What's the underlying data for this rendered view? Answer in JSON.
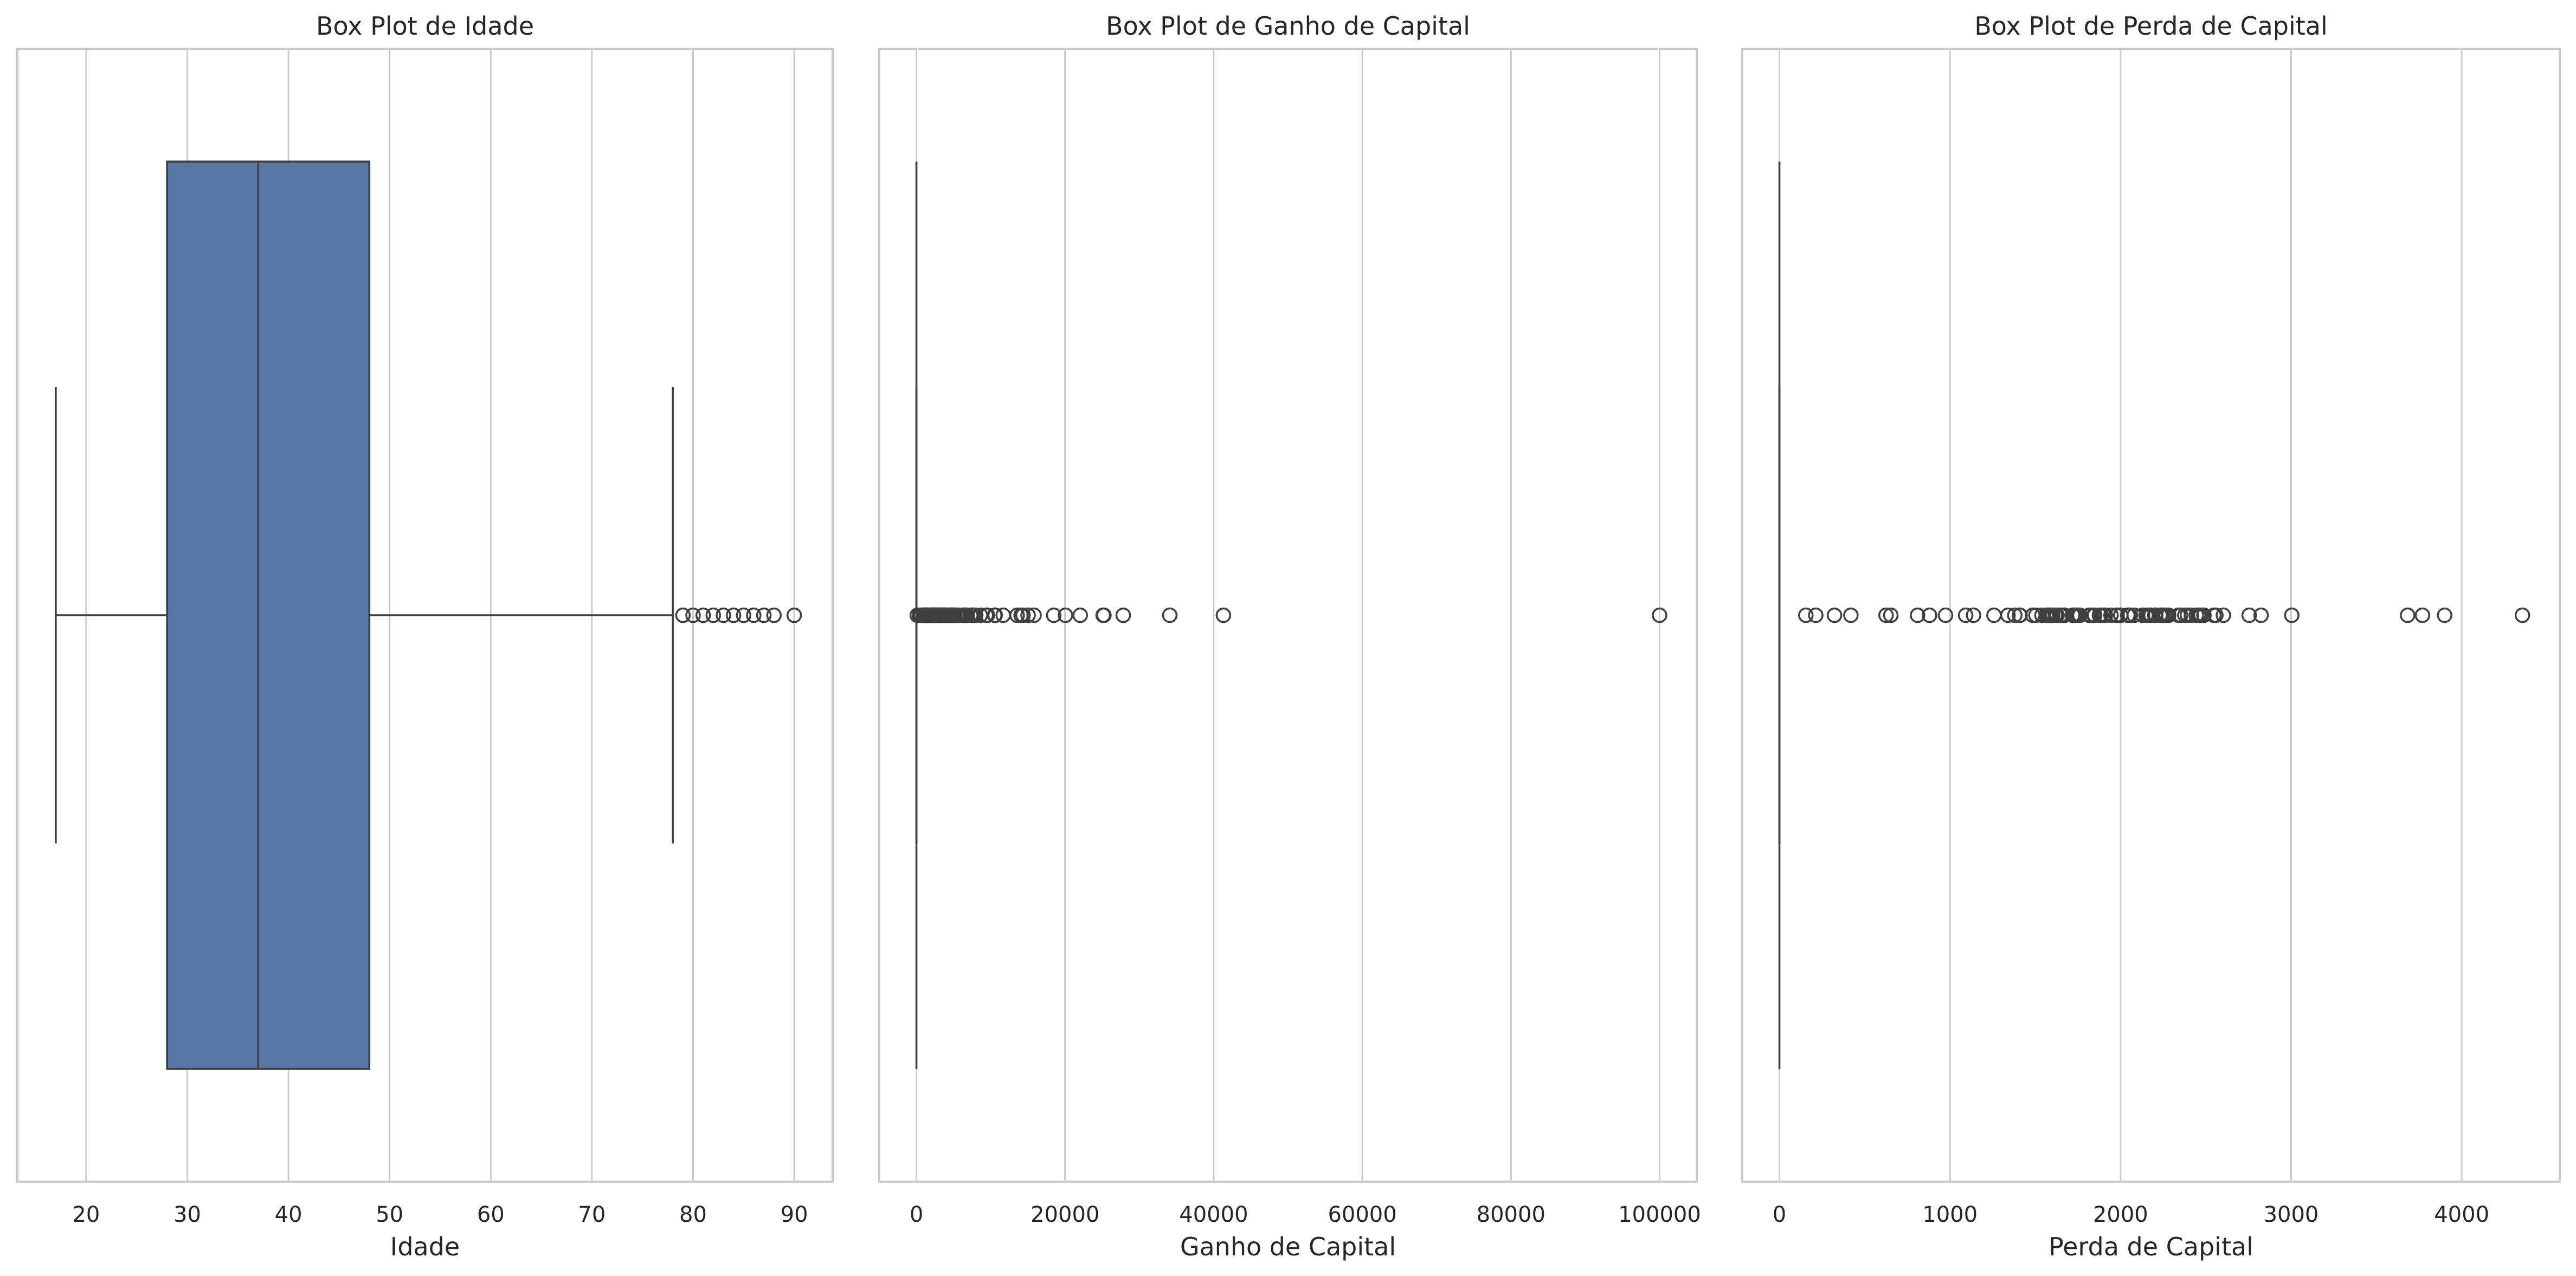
{
  "chart_data": [
    {
      "type": "box",
      "title": "Box Plot de Idade",
      "xlabel": "Idade",
      "xlim": [
        13.2,
        93.8
      ],
      "xticks": [
        20,
        30,
        40,
        50,
        60,
        70,
        80,
        90
      ],
      "grid": "vertical",
      "box_color": "#5975a4",
      "stats": {
        "whisker_low": 17,
        "q1": 28,
        "median": 37,
        "q3": 48,
        "whisker_high": 78
      },
      "outliers": [
        79,
        80,
        81,
        82,
        83,
        84,
        85,
        86,
        87,
        88,
        90
      ]
    },
    {
      "type": "box",
      "title": "Box Plot de Ganho de Capital",
      "xlabel": "Ganho de Capital",
      "xlim": [
        -5000,
        105000
      ],
      "xticks": [
        0,
        20000,
        40000,
        60000,
        80000,
        100000
      ],
      "grid": "vertical",
      "box_color": "#5975a4",
      "stats": {
        "whisker_low": 0,
        "q1": 0,
        "median": 0,
        "q3": 0,
        "whisker_high": 0
      },
      "outliers": [
        114,
        401,
        594,
        914,
        991,
        1055,
        1086,
        1111,
        1151,
        1173,
        1264,
        1409,
        1424,
        1455,
        1471,
        1506,
        1639,
        1797,
        1831,
        1848,
        2009,
        2036,
        2050,
        2062,
        2105,
        2174,
        2176,
        2202,
        2228,
        2290,
        2329,
        2346,
        2354,
        2387,
        2407,
        2414,
        2463,
        2538,
        2580,
        2597,
        2635,
        2653,
        2829,
        2885,
        2907,
        2936,
        2961,
        2964,
        2977,
        2993,
        3103,
        3137,
        3273,
        3325,
        3411,
        3418,
        3432,
        3456,
        3464,
        3471,
        3674,
        3781,
        3818,
        3887,
        3908,
        3942,
        4064,
        4101,
        4386,
        4416,
        4508,
        4650,
        4687,
        4787,
        4865,
        4931,
        4934,
        5013,
        5060,
        5178,
        5455,
        5556,
        5721,
        6097,
        6360,
        6418,
        6497,
        6514,
        6723,
        6767,
        6849,
        7298,
        7430,
        7443,
        7688,
        7896,
        7978,
        8614,
        9386,
        9562,
        10520,
        10566,
        10605,
        11678,
        13550,
        14084,
        14344,
        15020,
        15024,
        15831,
        18481,
        20051,
        22040,
        25124,
        25236,
        27828,
        34095,
        41310,
        99999
      ]
    },
    {
      "type": "box",
      "title": "Box Plot de Perda de Capital",
      "xlabel": "Perda de Capital",
      "xlim": [
        -217.8,
        4574.8
      ],
      "xticks": [
        0,
        1000,
        2000,
        3000,
        4000
      ],
      "grid": "vertical",
      "box_color": "#5975a4",
      "stats": {
        "whisker_low": 0,
        "q1": 0,
        "median": 0,
        "q3": 0,
        "whisker_high": 0
      },
      "outliers": [
        155,
        213,
        323,
        419,
        625,
        653,
        810,
        880,
        974,
        1092,
        1138,
        1258,
        1340,
        1380,
        1408,
        1411,
        1485,
        1504,
        1539,
        1564,
        1573,
        1579,
        1590,
        1594,
        1602,
        1617,
        1628,
        1648,
        1651,
        1668,
        1669,
        1672,
        1719,
        1721,
        1726,
        1735,
        1740,
        1741,
        1755,
        1762,
        1816,
        1825,
        1844,
        1848,
        1876,
        1887,
        1902,
        1911,
        1944,
        1974,
        1977,
        1980,
        2001,
        2002,
        2042,
        2051,
        2057,
        2080,
        2129,
        2149,
        2163,
        2174,
        2179,
        2201,
        2205,
        2206,
        2231,
        2238,
        2246,
        2258,
        2267,
        2282,
        2339,
        2352,
        2377,
        2392,
        2415,
        2444,
        2457,
        2467,
        2472,
        2489,
        2547,
        2559,
        2603,
        2754,
        2824,
        3004,
        3683,
        3770,
        3900,
        4356
      ]
    }
  ]
}
